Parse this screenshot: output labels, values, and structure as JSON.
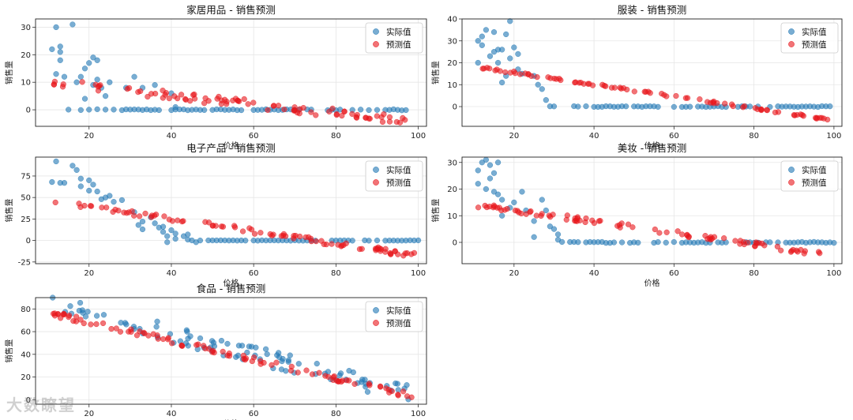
{
  "figure": {
    "watermark": "大数瞭望"
  },
  "chart_data": [
    {
      "type": "scatter",
      "title": "家居用品 - 销售预测",
      "xlabel": "价格",
      "ylabel": "销售量",
      "xlim": [
        7,
        102
      ],
      "ylim": [
        -6,
        33
      ],
      "xticks": [
        20,
        40,
        60,
        80,
        100
      ],
      "yticks": [
        0,
        10,
        20,
        30
      ],
      "legend": [
        "实际值",
        "预测值"
      ],
      "legend_position": "top-right",
      "actual_high": [
        [
          11,
          22
        ],
        [
          12,
          30
        ],
        [
          12,
          13
        ],
        [
          13,
          23
        ],
        [
          13,
          21
        ],
        [
          13,
          18
        ],
        [
          14,
          12
        ],
        [
          16,
          31
        ],
        [
          17,
          10
        ],
        [
          18,
          12
        ],
        [
          19,
          15
        ],
        [
          19,
          4
        ],
        [
          20,
          17
        ],
        [
          21,
          19
        ],
        [
          21,
          9
        ],
        [
          22,
          18
        ],
        [
          22,
          11
        ],
        [
          23,
          8
        ],
        [
          24,
          5
        ],
        [
          25,
          10
        ],
        [
          29,
          8
        ],
        [
          31,
          12
        ],
        [
          33,
          8
        ],
        [
          36,
          9
        ],
        [
          40,
          6
        ],
        [
          41,
          1
        ]
      ],
      "actual_zero_x": [
        15,
        18,
        20,
        22,
        24,
        26,
        28,
        29,
        30,
        31,
        32,
        33,
        34,
        35,
        36,
        37,
        40,
        41,
        42,
        43,
        44,
        45,
        46,
        47,
        48,
        50,
        51,
        52,
        53,
        54,
        55,
        56,
        57,
        60,
        61,
        62,
        63,
        64,
        65,
        66,
        67,
        68,
        69,
        70,
        71,
        73,
        74,
        78,
        79,
        80,
        81,
        84,
        86,
        88,
        90,
        92,
        93,
        94,
        95,
        96,
        97
      ],
      "pred_start": [
        11,
        10
      ],
      "pred_end": [
        97,
        -4
      ],
      "pred_n": 90,
      "pred_noise": 1.6
    },
    {
      "type": "scatter",
      "title": "服装 - 销售预测",
      "xlabel": "价格",
      "ylabel": "销售量",
      "xlim": [
        7,
        102
      ],
      "ylim": [
        -9,
        40
      ],
      "xticks": [
        20,
        40,
        60,
        80,
        100
      ],
      "yticks": [
        0,
        10,
        20,
        30,
        40
      ],
      "legend": [
        "实际值",
        "预测值"
      ],
      "legend_position": "top-right",
      "actual_high": [
        [
          11,
          30
        ],
        [
          11,
          20
        ],
        [
          12,
          32
        ],
        [
          12,
          28
        ],
        [
          13,
          35
        ],
        [
          14,
          23
        ],
        [
          15,
          25
        ],
        [
          15,
          34
        ],
        [
          16,
          26
        ],
        [
          16,
          20
        ],
        [
          17,
          11
        ],
        [
          17,
          26
        ],
        [
          18,
          14
        ],
        [
          18,
          33
        ],
        [
          19,
          22
        ],
        [
          19,
          39
        ],
        [
          20,
          27
        ],
        [
          21,
          24
        ],
        [
          21,
          17
        ],
        [
          22,
          15
        ],
        [
          25,
          14
        ],
        [
          26,
          10
        ],
        [
          27,
          8
        ],
        [
          28,
          3
        ]
      ],
      "actual_zero_x": [
        29,
        30,
        35,
        36,
        38,
        40,
        41,
        42,
        43,
        44,
        45,
        46,
        47,
        48,
        50,
        51,
        52,
        53,
        54,
        55,
        56,
        60,
        62,
        63,
        64,
        66,
        67,
        68,
        69,
        70,
        71,
        72,
        73,
        76,
        77,
        78,
        79,
        81,
        84,
        86,
        87,
        88,
        89,
        90,
        91,
        92,
        93,
        94,
        95,
        96,
        97,
        98,
        99
      ],
      "pred_start": [
        11,
        18
      ],
      "pred_end": [
        99,
        -6
      ],
      "pred_n": 85,
      "pred_noise": 0.5
    },
    {
      "type": "scatter",
      "title": "电子产品 - 销售预测",
      "xlabel": "价格",
      "ylabel": "销售量",
      "xlim": [
        7,
        102
      ],
      "ylim": [
        -27,
        97
      ],
      "xticks": [
        20,
        40,
        60,
        80,
        100
      ],
      "yticks": [
        -25,
        0,
        25,
        50,
        75
      ],
      "legend": [
        "实际值",
        "预测值"
      ],
      "legend_position": "top-right",
      "actual_high": [
        [
          11,
          68
        ],
        [
          12,
          92
        ],
        [
          13,
          67
        ],
        [
          14,
          67
        ],
        [
          16,
          87
        ],
        [
          17,
          82
        ],
        [
          18,
          72
        ],
        [
          18,
          63
        ],
        [
          20,
          70
        ],
        [
          20,
          58
        ],
        [
          21,
          65
        ],
        [
          22,
          57
        ],
        [
          23,
          48
        ],
        [
          24,
          50
        ],
        [
          25,
          52
        ],
        [
          26,
          45
        ],
        [
          28,
          47
        ],
        [
          31,
          33
        ],
        [
          32,
          18
        ],
        [
          33,
          22
        ],
        [
          33,
          13
        ],
        [
          35,
          27
        ],
        [
          36,
          20
        ],
        [
          37,
          15
        ],
        [
          38,
          10
        ],
        [
          38,
          16
        ],
        [
          39,
          5
        ],
        [
          39,
          -2
        ],
        [
          40,
          12
        ],
        [
          41,
          8
        ],
        [
          41,
          2
        ],
        [
          43,
          5
        ],
        [
          44,
          1
        ],
        [
          44,
          7
        ],
        [
          46,
          -2
        ]
      ],
      "actual_zero_x": [
        45,
        47,
        49,
        50,
        51,
        52,
        53,
        54,
        55,
        56,
        57,
        58,
        60,
        61,
        62,
        63,
        64,
        65,
        66,
        67,
        68,
        69,
        70,
        71,
        72,
        73,
        74,
        75,
        79,
        80,
        81,
        82,
        83,
        84,
        87,
        88,
        90,
        92,
        93,
        94,
        95,
        96,
        97,
        98,
        99,
        100
      ],
      "pred_start": [
        11,
        46
      ],
      "pred_end": [
        100,
        -18
      ],
      "pred_n": 90,
      "pred_noise": 3.0
    },
    {
      "type": "scatter",
      "title": "美妆 - 销售预测",
      "xlabel": "价格",
      "ylabel": "销售量",
      "xlim": [
        7,
        102
      ],
      "ylim": [
        -8,
        32
      ],
      "xticks": [
        20,
        40,
        60,
        80,
        100
      ],
      "yticks": [
        0,
        10,
        20,
        30
      ],
      "legend": [
        "实际值",
        "预测值"
      ],
      "legend_position": "top-right",
      "actual_high": [
        [
          11,
          22
        ],
        [
          11,
          27
        ],
        [
          12,
          30
        ],
        [
          13,
          31
        ],
        [
          13,
          20
        ],
        [
          14,
          24
        ],
        [
          14,
          29
        ],
        [
          15,
          19
        ],
        [
          15,
          26
        ],
        [
          16,
          30
        ],
        [
          16,
          18
        ],
        [
          17,
          16
        ],
        [
          17,
          10
        ],
        [
          19,
          13
        ],
        [
          20,
          15
        ],
        [
          22,
          19
        ],
        [
          23,
          12
        ],
        [
          25,
          2
        ],
        [
          25,
          8
        ],
        [
          27,
          16
        ],
        [
          28,
          12
        ],
        [
          29,
          6
        ],
        [
          30,
          5
        ],
        [
          31,
          3
        ],
        [
          31,
          1
        ]
      ],
      "actual_zero_x": [
        32,
        34,
        35,
        36,
        38,
        39,
        40,
        41,
        42,
        43,
        44,
        45,
        47,
        49,
        50,
        51,
        55,
        56,
        58,
        60,
        62,
        63,
        64,
        65,
        66,
        67,
        68,
        69,
        71,
        72,
        73,
        78,
        79,
        80,
        81,
        83,
        84,
        86,
        88,
        89,
        90,
        91,
        92,
        93,
        94,
        95,
        96,
        97,
        98,
        99,
        100
      ],
      "pred_start": [
        11,
        14
      ],
      "pred_end": [
        100,
        -5
      ],
      "pred_n": 88,
      "pred_noise": 0.9
    },
    {
      "type": "scatter",
      "title": "食品 - 销售预测",
      "xlabel": "价格",
      "ylabel": "销售量",
      "xlim": [
        7,
        102
      ],
      "ylim": [
        -4,
        90
      ],
      "xticks": [
        20,
        40,
        60,
        80,
        100
      ],
      "yticks": [
        0,
        20,
        40,
        60,
        80
      ],
      "legend": [
        "实际值",
        "预测值"
      ],
      "legend_position": "top-right",
      "actual_trend_start": [
        11,
        85
      ],
      "actual_trend_end": [
        100,
        3
      ],
      "actual_n": 95,
      "actual_noise": 8,
      "pred_start": [
        11,
        76
      ],
      "pred_end": [
        100,
        2
      ],
      "pred_n": 95,
      "pred_noise": 2.5
    }
  ]
}
